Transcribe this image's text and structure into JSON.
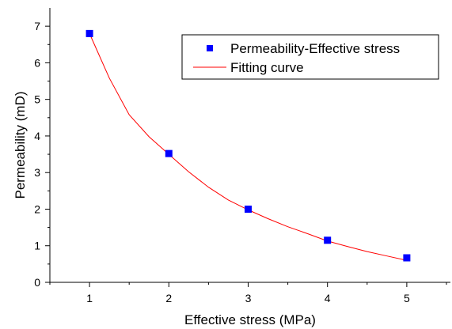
{
  "chart_data": {
    "type": "scatter",
    "title": "",
    "xlabel": "Effective stress (MPa)",
    "ylabel": "Permeability (mD)",
    "xlim": [
      0.5,
      5.55
    ],
    "ylim": [
      0,
      7.5
    ],
    "xticks": [
      1,
      2,
      3,
      4,
      5
    ],
    "yticks": [
      0,
      1,
      2,
      3,
      4,
      5,
      6,
      7
    ],
    "grid": false,
    "legend_position": "top-right",
    "series": [
      {
        "name": "Permeability-Effective stress",
        "type": "scatter",
        "marker": "square",
        "color": "#0000ff",
        "x": [
          1,
          2,
          3,
          4,
          5
        ],
        "y": [
          6.8,
          3.52,
          2.0,
          1.15,
          0.67
        ]
      },
      {
        "name": "Fitting curve",
        "type": "line",
        "color": "#ff0000",
        "x": [
          1.0,
          1.25,
          1.5,
          1.75,
          2.0,
          2.25,
          2.5,
          2.75,
          3.0,
          3.25,
          3.5,
          3.75,
          4.0,
          4.25,
          4.5,
          4.75,
          5.0
        ],
        "y": [
          6.8,
          5.58,
          4.58,
          3.98,
          3.5,
          3.02,
          2.6,
          2.25,
          1.98,
          1.74,
          1.52,
          1.33,
          1.13,
          0.98,
          0.84,
          0.72,
          0.6
        ]
      }
    ]
  }
}
